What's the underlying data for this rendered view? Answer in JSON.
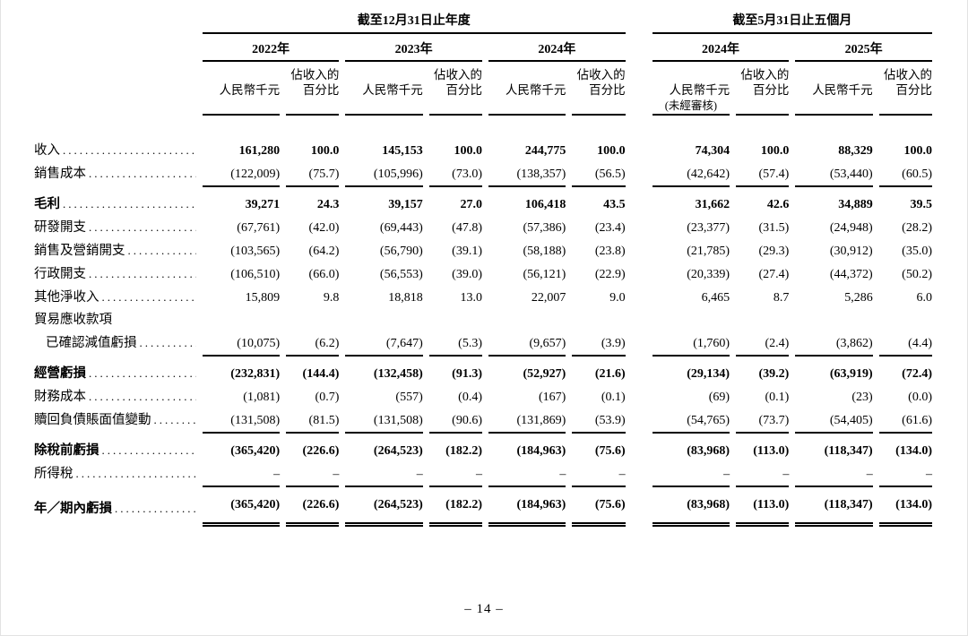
{
  "page": {
    "number_label": "– 14 –"
  },
  "table": {
    "period_groups": [
      {
        "label": "截至12月31日止年度"
      },
      {
        "label": "截至5月31日止五個月"
      }
    ],
    "years": [
      {
        "label": "2022年",
        "note": ""
      },
      {
        "label": "2023年",
        "note": ""
      },
      {
        "label": "2024年",
        "note": ""
      },
      {
        "label": "2024年",
        "note": "(未經審核)"
      },
      {
        "label": "2025年",
        "note": ""
      }
    ],
    "subheaders": {
      "amount": "人民幣千元",
      "percent": "佔收入的百分比"
    },
    "rows": [
      {
        "label": "收入",
        "dots": true,
        "label_bold": false,
        "values_bold": true,
        "values": [
          "161,280",
          "100.0",
          "145,153",
          "100.0",
          "244,775",
          "100.0",
          "74,304",
          "100.0",
          "88,329",
          "100.0"
        ]
      },
      {
        "label": "銷售成本",
        "dots": true,
        "values": [
          "(122,009)",
          "(75.7)",
          "(105,996)",
          "(73.0)",
          "(138,357)",
          "(56.5)",
          "(42,642)",
          "(57.4)",
          "(53,440)",
          "(60.5)"
        ]
      },
      {
        "label": "毛利",
        "dots": true,
        "label_bold": true,
        "values_bold": true,
        "rule_above": true,
        "values": [
          "39,271",
          "24.3",
          "39,157",
          "27.0",
          "106,418",
          "43.5",
          "31,662",
          "42.6",
          "34,889",
          "39.5"
        ]
      },
      {
        "label": "研發開支",
        "dots": true,
        "values": [
          "(67,761)",
          "(42.0)",
          "(69,443)",
          "(47.8)",
          "(57,386)",
          "(23.4)",
          "(23,377)",
          "(31.5)",
          "(24,948)",
          "(28.2)"
        ]
      },
      {
        "label": "銷售及營銷開支",
        "dots": true,
        "values": [
          "(103,565)",
          "(64.2)",
          "(56,790)",
          "(39.1)",
          "(58,188)",
          "(23.8)",
          "(21,785)",
          "(29.3)",
          "(30,912)",
          "(35.0)"
        ]
      },
      {
        "label": "行政開支",
        "dots": true,
        "values": [
          "(106,510)",
          "(66.0)",
          "(56,553)",
          "(39.0)",
          "(56,121)",
          "(22.9)",
          "(20,339)",
          "(27.4)",
          "(44,372)",
          "(50.2)"
        ]
      },
      {
        "label": "其他淨收入",
        "dots": true,
        "values": [
          "15,809",
          "9.8",
          "18,818",
          "13.0",
          "22,007",
          "9.0",
          "6,465",
          "8.7",
          "5,286",
          "6.0"
        ]
      },
      {
        "label": "貿易應收款項",
        "dots": false,
        "values": []
      },
      {
        "label": "已確認減值虧損",
        "dots": true,
        "indent": true,
        "values": [
          "(10,075)",
          "(6.2)",
          "(7,647)",
          "(5.3)",
          "(9,657)",
          "(3.9)",
          "(1,760)",
          "(2.4)",
          "(3,862)",
          "(4.4)"
        ]
      },
      {
        "label": "經營虧損",
        "dots": true,
        "label_bold": true,
        "values_bold": true,
        "rule_above": true,
        "values": [
          "(232,831)",
          "(144.4)",
          "(132,458)",
          "(91.3)",
          "(52,927)",
          "(21.6)",
          "(29,134)",
          "(39.2)",
          "(63,919)",
          "(72.4)"
        ]
      },
      {
        "label": "財務成本",
        "dots": true,
        "values": [
          "(1,081)",
          "(0.7)",
          "(557)",
          "(0.4)",
          "(167)",
          "(0.1)",
          "(69)",
          "(0.1)",
          "(23)",
          "(0.0)"
        ]
      },
      {
        "label": "贖回負債賬面值變動",
        "dots": true,
        "values": [
          "(131,508)",
          "(81.5)",
          "(131,508)",
          "(90.6)",
          "(131,869)",
          "(53.9)",
          "(54,765)",
          "(73.7)",
          "(54,405)",
          "(61.6)"
        ]
      },
      {
        "label": "除稅前虧損",
        "dots": true,
        "label_bold": true,
        "values_bold": true,
        "rule_above": true,
        "values": [
          "(365,420)",
          "(226.6)",
          "(264,523)",
          "(182.2)",
          "(184,963)",
          "(75.6)",
          "(83,968)",
          "(113.0)",
          "(118,347)",
          "(134.0)"
        ]
      },
      {
        "label": "所得稅",
        "dots": true,
        "values": [
          "–",
          "–",
          "–",
          "–",
          "–",
          "–",
          "–",
          "–",
          "–",
          "–"
        ]
      },
      {
        "label": "年／期內虧損",
        "dots": true,
        "label_bold": true,
        "values_bold": true,
        "rule_above": true,
        "rule_below": "double",
        "values": [
          "(365,420)",
          "(226.6)",
          "(264,523)",
          "(182.2)",
          "(184,963)",
          "(75.6)",
          "(83,968)",
          "(113.0)",
          "(118,347)",
          "(134.0)"
        ]
      }
    ]
  }
}
